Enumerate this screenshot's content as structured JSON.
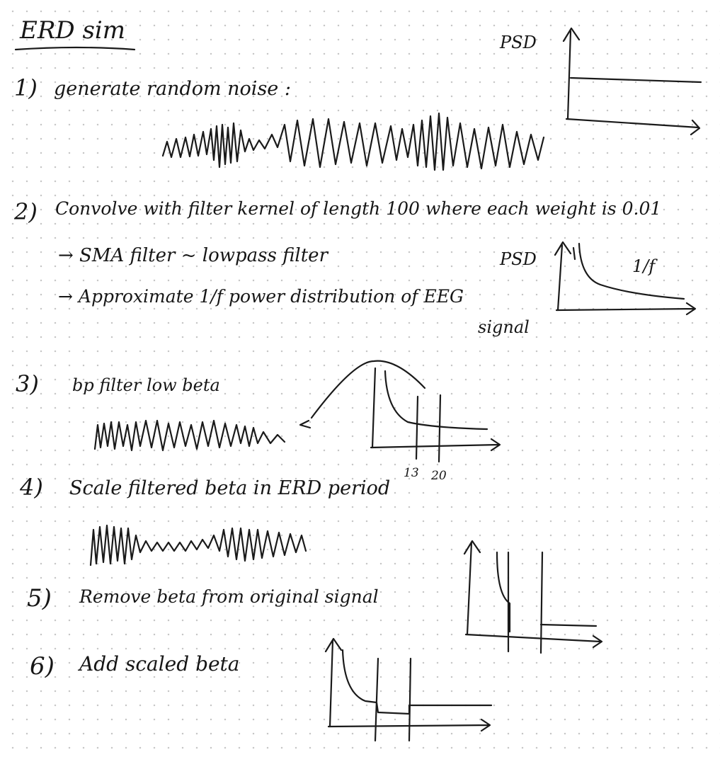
{
  "title": "ERD sim",
  "steps": [
    {
      "number": "1)",
      "text": "generate random noise :"
    },
    {
      "number": "2)",
      "text": "Convolve with filter kernel of length 100 where each weight is 0.01"
    },
    {
      "number": "",
      "text": "→ SMA filter ~ lowpass filter"
    },
    {
      "number": "",
      "text": "→ Approximate 1/f power distribution of EEG"
    },
    {
      "number": "",
      "text": "signal"
    },
    {
      "number": "3)",
      "text": "bp filter low beta"
    },
    {
      "number": "4)",
      "text": "Scale filtered beta in ERD period"
    },
    {
      "number": "5)",
      "text": "Remove beta from original signal"
    },
    {
      "number": "6)",
      "text": "Add scaled beta"
    }
  ],
  "psd_labels": {
    "flat": "PSD",
    "pink": "PSD",
    "one_over_f": "1/f"
  },
  "band_ticks": [
    "13",
    "20"
  ]
}
